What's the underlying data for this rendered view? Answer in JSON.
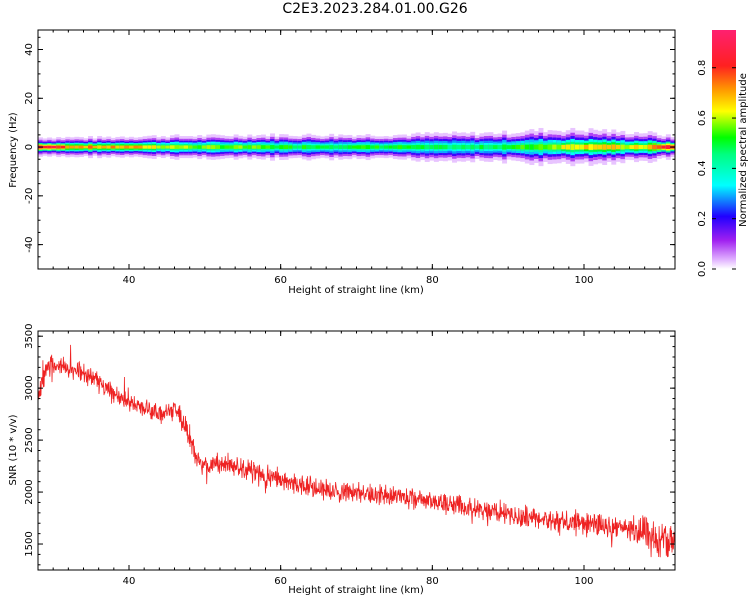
{
  "title": "C2E3.2023.284.01.00.G26",
  "colors": {
    "snr_line": "#ee2222"
  },
  "chart_data": [
    {
      "type": "heatmap",
      "xlabel": "Height of straight line (km)",
      "ylabel": "Frequency (Hz)",
      "xlim": [
        28,
        112
      ],
      "ylim": [
        -50,
        48
      ],
      "xticks": [
        40,
        60,
        80,
        100
      ],
      "yticks": [
        -40,
        -20,
        0,
        20,
        40
      ],
      "colorbar": {
        "label": "Normalized spectral amplitude",
        "range": [
          0,
          0.95
        ],
        "ticks": [
          0.0,
          0.2,
          0.4,
          0.6,
          0.8
        ],
        "colormap": "hsv-rainbow"
      },
      "band": {
        "center_hz": 0,
        "samples_x": [
          28,
          32,
          36,
          40,
          45,
          50,
          55,
          60,
          65,
          70,
          75,
          80,
          85,
          90,
          94,
          98,
          102,
          105,
          108,
          110,
          112
        ],
        "halfwidth_hz": [
          2,
          2,
          2,
          2.2,
          2.3,
          2.3,
          2.5,
          2.5,
          2.5,
          2.5,
          2.5,
          2.8,
          2.8,
          3,
          3.5,
          3.5,
          3.5,
          3,
          3,
          2.5,
          2
        ],
        "peak_amplitude": [
          0.95,
          0.8,
          0.75,
          0.75,
          0.65,
          0.6,
          0.6,
          0.55,
          0.55,
          0.55,
          0.55,
          0.5,
          0.5,
          0.55,
          0.6,
          0.7,
          0.75,
          0.65,
          0.7,
          0.85,
          0.95
        ]
      }
    },
    {
      "type": "line",
      "xlabel": "Height of straight line (km)",
      "ylabel": "SNR (10 * v/v)",
      "xlim": [
        28,
        112
      ],
      "ylim": [
        1250,
        3550
      ],
      "xticks": [
        40,
        60,
        80,
        100
      ],
      "yticks": [
        1500,
        2000,
        2500,
        3000,
        3500
      ],
      "series": [
        {
          "x": [
            28,
            29,
            30,
            31,
            32,
            34,
            36,
            38,
            40,
            42,
            44,
            46,
            47,
            48,
            49,
            50,
            52,
            54,
            56,
            58,
            60,
            62,
            64,
            66,
            68,
            70,
            72,
            74,
            76,
            78,
            80,
            82,
            84,
            86,
            88,
            90,
            92,
            94,
            96,
            98,
            100,
            102,
            104,
            106,
            108,
            110,
            112
          ],
          "values": [
            2950,
            3150,
            3250,
            3200,
            3180,
            3150,
            3050,
            2950,
            2850,
            2800,
            2750,
            2780,
            2700,
            2550,
            2300,
            2250,
            2280,
            2250,
            2200,
            2150,
            2120,
            2080,
            2050,
            2030,
            2000,
            1990,
            1970,
            1960,
            1950,
            1940,
            1920,
            1880,
            1860,
            1830,
            1800,
            1790,
            1760,
            1750,
            1730,
            1720,
            1700,
            1680,
            1650,
            1640,
            1600,
            1500,
            1550
          ]
        }
      ]
    }
  ]
}
